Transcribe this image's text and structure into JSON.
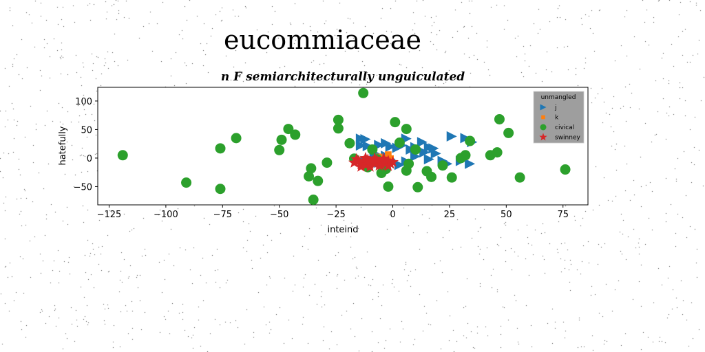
{
  "figure_title": "eucommiaceae",
  "chart_data": {
    "type": "scatter",
    "title": "n F semiarchitecturally unguiculated",
    "xlabel": "inteind",
    "ylabel": "hatefully",
    "xlim": [
      -130,
      86
    ],
    "ylim": [
      -82,
      124
    ],
    "xticks": [
      -125,
      -100,
      -75,
      -50,
      -25,
      0,
      25,
      50,
      75
    ],
    "yticks": [
      -50,
      0,
      50,
      100
    ],
    "grid": false,
    "legend": {
      "title": "unmangled",
      "placement": "upper-right"
    },
    "series": [
      {
        "name": "j",
        "marker": "triangle-right",
        "color": "#1f77b4",
        "points": [
          [
            -14,
            34
          ],
          [
            -12,
            33
          ],
          [
            -14,
            22
          ],
          [
            -11,
            21
          ],
          [
            -6,
            23
          ],
          [
            -3,
            26
          ],
          [
            -1,
            20
          ],
          [
            2,
            18
          ],
          [
            4,
            22
          ],
          [
            6,
            34
          ],
          [
            8,
            15
          ],
          [
            10,
            19
          ],
          [
            13,
            28
          ],
          [
            16,
            19
          ],
          [
            18,
            17
          ],
          [
            14,
            10
          ],
          [
            19,
            8
          ],
          [
            16,
            -2
          ],
          [
            22,
            -5
          ],
          [
            24,
            -10
          ],
          [
            26,
            38
          ],
          [
            32,
            35
          ],
          [
            35,
            28
          ],
          [
            30,
            -5
          ],
          [
            34,
            -10
          ],
          [
            -12,
            -5
          ],
          [
            -6,
            -8
          ],
          [
            -1,
            -2
          ],
          [
            3,
            -12
          ],
          [
            6,
            -6
          ],
          [
            -8,
            8
          ],
          [
            -3,
            4
          ],
          [
            10,
            3
          ]
        ]
      },
      {
        "name": "k",
        "marker": "square",
        "color": "#ff7f0e",
        "points": [
          [
            -10,
            -4
          ],
          [
            -7,
            -2
          ],
          [
            -4,
            -5
          ],
          [
            -2,
            6
          ],
          [
            -1,
            -1
          ],
          [
            -6,
            2
          ],
          [
            -12,
            -8
          ]
        ]
      },
      {
        "name": "civical",
        "marker": "circle",
        "color": "#2ca02c",
        "points": [
          [
            -119,
            5
          ],
          [
            -91,
            -43
          ],
          [
            -76,
            17
          ],
          [
            -76,
            -54
          ],
          [
            -69,
            35
          ],
          [
            -50,
            14
          ],
          [
            -49,
            32
          ],
          [
            -46,
            51
          ],
          [
            -43,
            41
          ],
          [
            -36,
            -18
          ],
          [
            -37,
            -32
          ],
          [
            -33,
            -40
          ],
          [
            -35,
            -73
          ],
          [
            -29,
            -8
          ],
          [
            -24,
            67
          ],
          [
            -24,
            52
          ],
          [
            -19,
            26
          ],
          [
            -17,
            -1
          ],
          [
            -13,
            114
          ],
          [
            -9,
            15
          ],
          [
            -7,
            -2
          ],
          [
            -5,
            -26
          ],
          [
            -3,
            -19
          ],
          [
            -2,
            -50
          ],
          [
            1,
            63
          ],
          [
            3,
            27
          ],
          [
            6,
            51
          ],
          [
            6,
            -22
          ],
          [
            7,
            -10
          ],
          [
            10,
            15
          ],
          [
            11,
            -51
          ],
          [
            15,
            -23
          ],
          [
            17,
            -33
          ],
          [
            22,
            -13
          ],
          [
            26,
            -34
          ],
          [
            30,
            0
          ],
          [
            32,
            5
          ],
          [
            34,
            30
          ],
          [
            43,
            5
          ],
          [
            46,
            10
          ],
          [
            47,
            68
          ],
          [
            51,
            44
          ],
          [
            56,
            -34
          ],
          [
            76,
            -20
          ],
          [
            -11,
            -16
          ]
        ]
      },
      {
        "name": "swinney",
        "marker": "star",
        "color": "#d62728",
        "points": [
          [
            -17,
            -8
          ],
          [
            -15,
            -5
          ],
          [
            -14,
            -11
          ],
          [
            -13,
            -6
          ],
          [
            -12,
            -12
          ],
          [
            -11,
            -3
          ],
          [
            -10,
            -9
          ],
          [
            -9,
            -6
          ],
          [
            -8,
            -10
          ],
          [
            -7,
            -4
          ],
          [
            -6,
            -8
          ],
          [
            -5,
            -12
          ],
          [
            -4,
            -6
          ],
          [
            -3,
            -9
          ],
          [
            -2,
            -5
          ],
          [
            -1,
            -10
          ],
          [
            0,
            -7
          ],
          [
            -16,
            -2
          ],
          [
            -12,
            0
          ],
          [
            -8,
            -1
          ],
          [
            -4,
            -1
          ],
          [
            -6,
            -13
          ],
          [
            -2,
            -14
          ],
          [
            -10,
            -15
          ],
          [
            -14,
            -15
          ]
        ]
      }
    ]
  }
}
